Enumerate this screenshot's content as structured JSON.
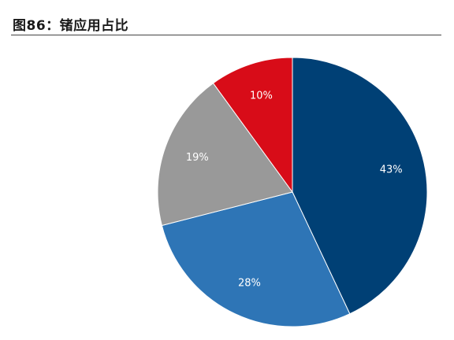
{
  "header": {
    "figure_title": "图86：锗应用占比"
  },
  "chart_data": {
    "type": "pie",
    "title": "图86：锗应用占比",
    "start_angle_deg": 0,
    "direction": "clockwise",
    "legend": "none",
    "slices": [
      {
        "value": 43,
        "label": "43%",
        "color": "#004075"
      },
      {
        "value": 28,
        "label": "28%",
        "color": "#2E75B6"
      },
      {
        "value": 19,
        "label": "19%",
        "color": "#999999"
      },
      {
        "value": 10,
        "label": "10%",
        "color": "#D80C18"
      }
    ]
  }
}
